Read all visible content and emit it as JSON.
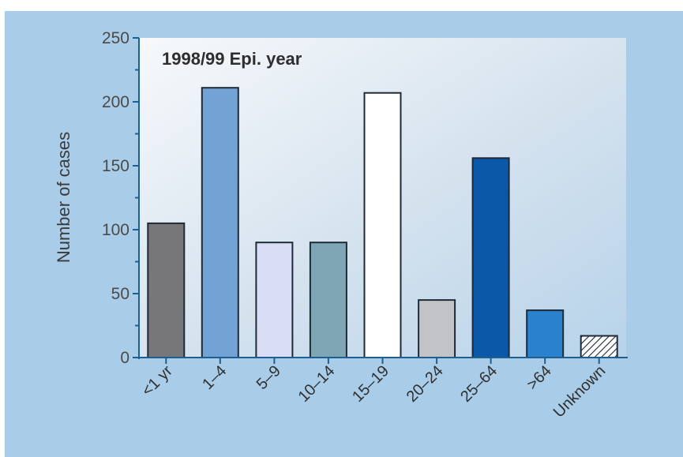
{
  "chart_data": {
    "type": "bar",
    "title": "1998/99 Epi. year",
    "xlabel": "",
    "ylabel": "Number of cases",
    "ylim": [
      0,
      250
    ],
    "yticks": [
      0,
      50,
      100,
      150,
      200,
      250
    ],
    "grid": false,
    "categories": [
      "<1 yr",
      "1–4",
      "5–9",
      "10–14",
      "15–19",
      "20–24",
      "25–64",
      ">64",
      "Unknown"
    ],
    "values": [
      105,
      211,
      90,
      90,
      207,
      45,
      156,
      37,
      17
    ],
    "colors": [
      "#777779",
      "#73a3d4",
      "#d9def6",
      "#7ea6b5",
      "#ffffff",
      "#c2c3c6",
      "#0b58a8",
      "#2a82cf",
      "hatched"
    ]
  }
}
